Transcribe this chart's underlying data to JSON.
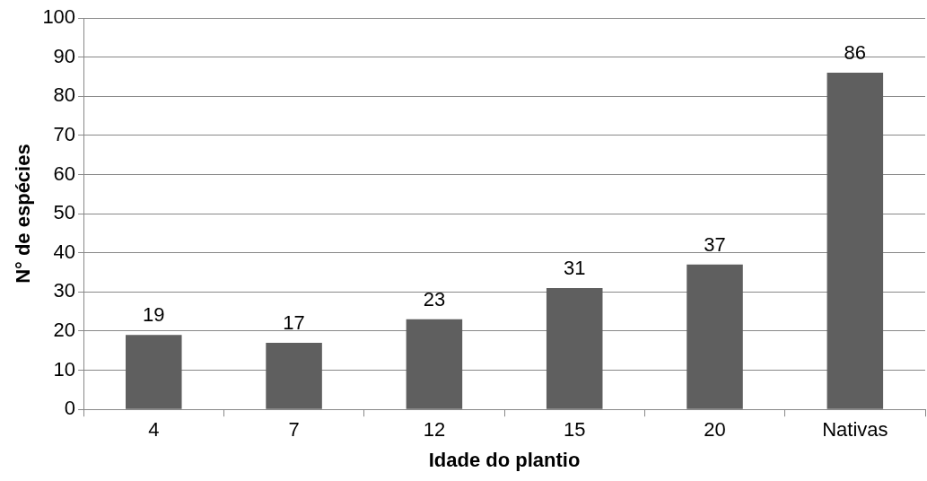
{
  "chart_data": {
    "type": "bar",
    "xlabel": "Idade do plantio",
    "ylabel": "N° de espécies",
    "categories": [
      "4",
      "7",
      "12",
      "15",
      "20",
      "Nativas"
    ],
    "values": [
      19,
      17,
      23,
      31,
      37,
      86
    ],
    "color": "#5f5f5f",
    "ylim": [
      0,
      100
    ],
    "yticks": [
      0,
      10,
      20,
      30,
      40,
      50,
      60,
      70,
      80,
      90,
      100
    ],
    "grid": "y",
    "data_labels": true,
    "legend": false
  }
}
